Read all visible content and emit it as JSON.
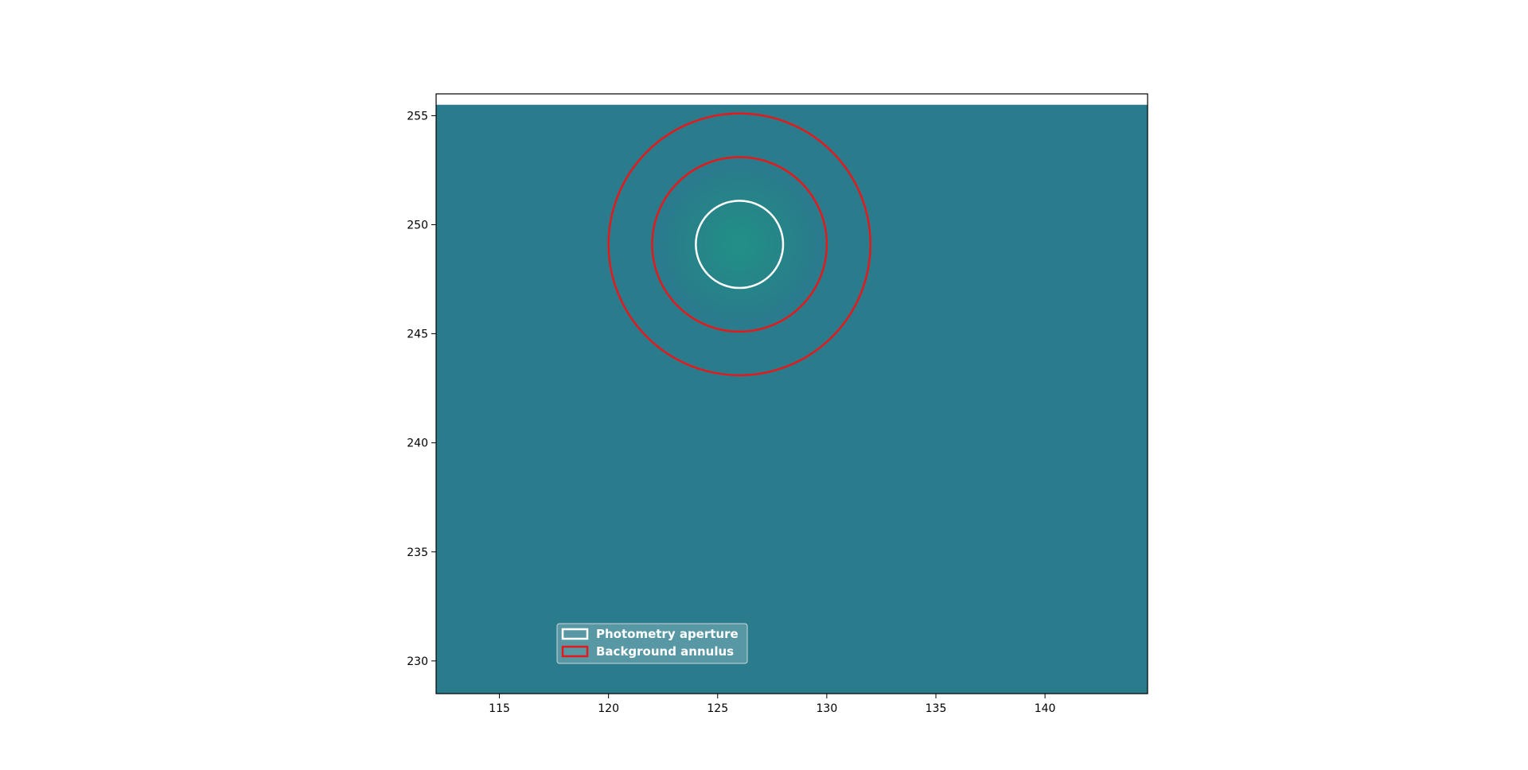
{
  "chart_data": {
    "type": "heatmap",
    "title": "",
    "xlabel": "",
    "ylabel": "",
    "xlim": [
      112.1,
      144.7
    ],
    "ylim": [
      228.5,
      256
    ],
    "image_extent_y_top": 255.5,
    "x_ticks": [
      115,
      120,
      125,
      130,
      135,
      140
    ],
    "y_ticks": [
      230,
      235,
      240,
      245,
      250,
      255
    ],
    "grid": false,
    "image_color": "#2a7b8c",
    "source": {
      "x": 126,
      "y": 249.1,
      "peak_color": "#219085"
    },
    "apertures": [
      {
        "name": "Photometry aperture",
        "type": "circle",
        "x": 126,
        "y": 249.1,
        "r": 2.0,
        "color": "#ffffff"
      },
      {
        "name": "Background annulus",
        "type": "annulus",
        "x": 126,
        "y": 249.1,
        "r_in": 4.0,
        "r_out": 6.0,
        "color": "#e31a1c"
      }
    ],
    "legend": {
      "placement": "lower-left",
      "entries": [
        {
          "label": "Photometry aperture",
          "color": "#ffffff"
        },
        {
          "label": "Background annulus",
          "color": "#e31a1c"
        }
      ]
    }
  }
}
